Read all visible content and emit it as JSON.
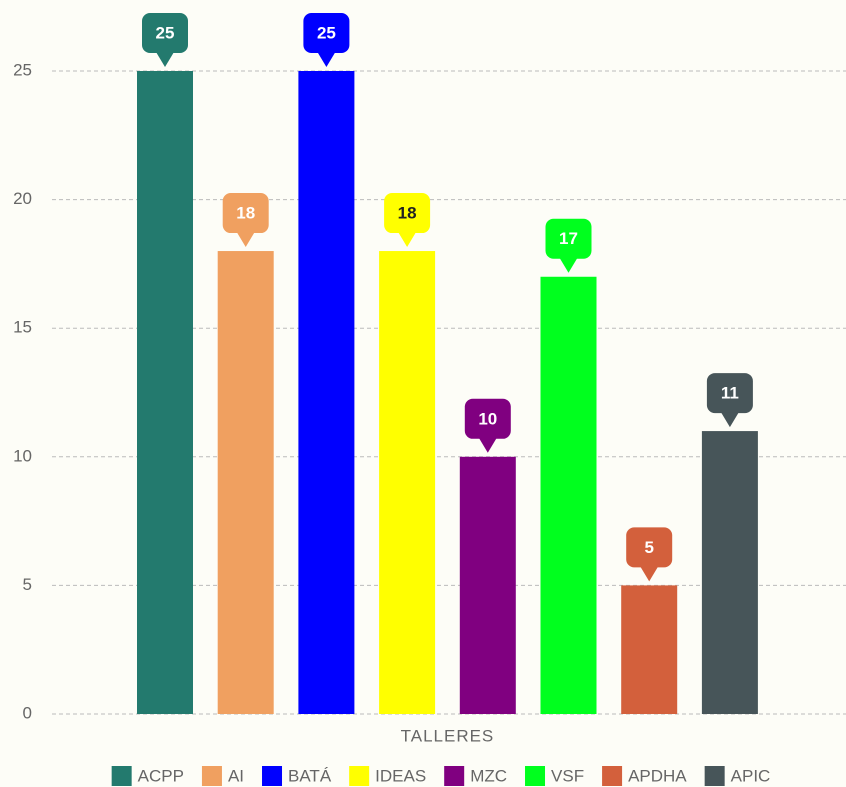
{
  "chart_data": {
    "type": "bar",
    "categories": [
      "TALLERES"
    ],
    "series": [
      {
        "name": "ACPP",
        "color": "#237a6e",
        "values": [
          25
        ]
      },
      {
        "name": "AI",
        "color": "#f0a060",
        "values": [
          18
        ]
      },
      {
        "name": "BATÁ",
        "color": "#0000ff",
        "values": [
          25
        ]
      },
      {
        "name": "IDEAS",
        "color": "#ffff00",
        "values": [
          18
        ]
      },
      {
        "name": "MZC",
        "color": "#800080",
        "values": [
          10
        ]
      },
      {
        "name": "VSF",
        "color": "#00ff1e",
        "values": [
          17
        ]
      },
      {
        "name": "APDHA",
        "color": "#d3603c",
        "values": [
          5
        ]
      },
      {
        "name": "APIC",
        "color": "#475559",
        "values": [
          11
        ]
      }
    ],
    "ylim": [
      0,
      25
    ],
    "yticks": [
      0,
      5,
      10,
      15,
      20,
      25
    ],
    "grid": true,
    "legend": "bottom"
  }
}
